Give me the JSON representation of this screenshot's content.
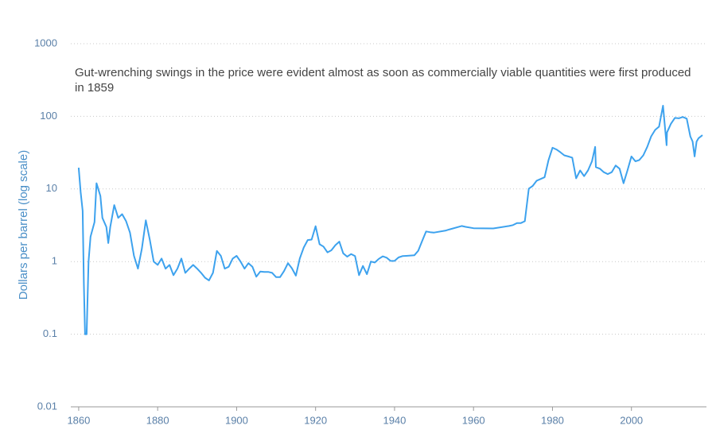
{
  "chart_data": {
    "type": "line",
    "annotation": "Gut-wrenching swings in the price were evident almost as soon as commercially viable quantities were first produced in 1859",
    "y_label": "Dollars per barrel (log scale)",
    "log_scale": true,
    "grid": true,
    "color": "#3da2ee",
    "xlim": [
      1858,
      2019
    ],
    "xticks": [
      1860,
      1880,
      1900,
      1920,
      1940,
      1960,
      1980,
      2000
    ],
    "ylim": [
      0.01,
      1000
    ],
    "yticks": [
      0.01,
      0.1,
      1,
      10,
      100,
      1000
    ],
    "x": [
      1860,
      1860.5,
      1861,
      1861.3,
      1861.6,
      1862,
      1862.5,
      1863,
      1864,
      1864.5,
      1865.5,
      1866,
      1867,
      1867.5,
      1868,
      1869,
      1870,
      1871,
      1872,
      1873,
      1874,
      1875,
      1876,
      1877,
      1878,
      1879,
      1880,
      1881,
      1882,
      1883,
      1884,
      1885,
      1886,
      1887,
      1888,
      1889,
      1890,
      1891,
      1892,
      1893,
      1894,
      1895,
      1896,
      1897,
      1898,
      1899,
      1900,
      1901,
      1902,
      1903,
      1904,
      1905,
      1906,
      1907,
      1908,
      1909,
      1910,
      1911,
      1912,
      1913,
      1914,
      1915,
      1916,
      1917,
      1918,
      1919,
      1920,
      1921,
      1922,
      1923,
      1924,
      1925,
      1926,
      1927,
      1928,
      1929,
      1930,
      1931,
      1932,
      1933,
      1934,
      1935,
      1936,
      1937,
      1938,
      1939,
      1940,
      1941,
      1942,
      1943,
      1944,
      1945,
      1946,
      1947,
      1948,
      1949,
      1950,
      1953,
      1954,
      1957,
      1958,
      1960,
      1965,
      1969,
      1970,
      1971,
      1972,
      1973,
      1974,
      1975,
      1976,
      1978,
      1979,
      1980,
      1981,
      1982,
      1983,
      1984,
      1985,
      1986,
      1987,
      1988,
      1989,
      1990,
      1990.8,
      1991,
      1992,
      1993,
      1994,
      1995,
      1996,
      1997,
      1998,
      1999,
      2000,
      2001,
      2002,
      2003,
      2004,
      2005,
      2006,
      2007,
      2008,
      2008.9,
      2009,
      2010,
      2011,
      2012,
      2013,
      2014,
      2014.9,
      2015.5,
      2016,
      2016.5,
      2017,
      2018
    ],
    "values": [
      19.6,
      9,
      5,
      0.5,
      0.1,
      0.1,
      1,
      2.2,
      3.5,
      12,
      8,
      4,
      3,
      1.8,
      3,
      6,
      4,
      4.5,
      3.6,
      2.5,
      1.2,
      0.8,
      1.5,
      3.7,
      2,
      1,
      0.9,
      1.1,
      0.8,
      0.9,
      0.65,
      0.8,
      1.1,
      0.7,
      0.8,
      0.9,
      0.8,
      0.7,
      0.6,
      0.55,
      0.7,
      1.4,
      1.2,
      0.8,
      0.85,
      1.1,
      1.2,
      1.0,
      0.8,
      0.95,
      0.85,
      0.62,
      0.73,
      0.72,
      0.72,
      0.7,
      0.61,
      0.61,
      0.74,
      0.95,
      0.81,
      0.64,
      1.1,
      1.56,
      1.98,
      2.01,
      3.07,
      1.73,
      1.61,
      1.34,
      1.43,
      1.68,
      1.88,
      1.3,
      1.17,
      1.27,
      1.19,
      0.65,
      0.87,
      0.67,
      1.0,
      0.97,
      1.09,
      1.18,
      1.13,
      1.02,
      1.02,
      1.14,
      1.19,
      1.2,
      1.21,
      1.22,
      1.41,
      1.93,
      2.6,
      2.54,
      2.51,
      2.68,
      2.78,
      3.09,
      3.01,
      2.88,
      2.86,
      3.09,
      3.18,
      3.39,
      3.39,
      3.6,
      10.1,
      11,
      13,
      14.5,
      25,
      37,
      35,
      32,
      29,
      28,
      27,
      14,
      18,
      15,
      18,
      24,
      38,
      20,
      19,
      17,
      16,
      17,
      21,
      19,
      12,
      18,
      28,
      24,
      25,
      29,
      38,
      53,
      65,
      72,
      140,
      40,
      60,
      79,
      95,
      94,
      98,
      93,
      53,
      45,
      28,
      45,
      50,
      55
    ]
  }
}
